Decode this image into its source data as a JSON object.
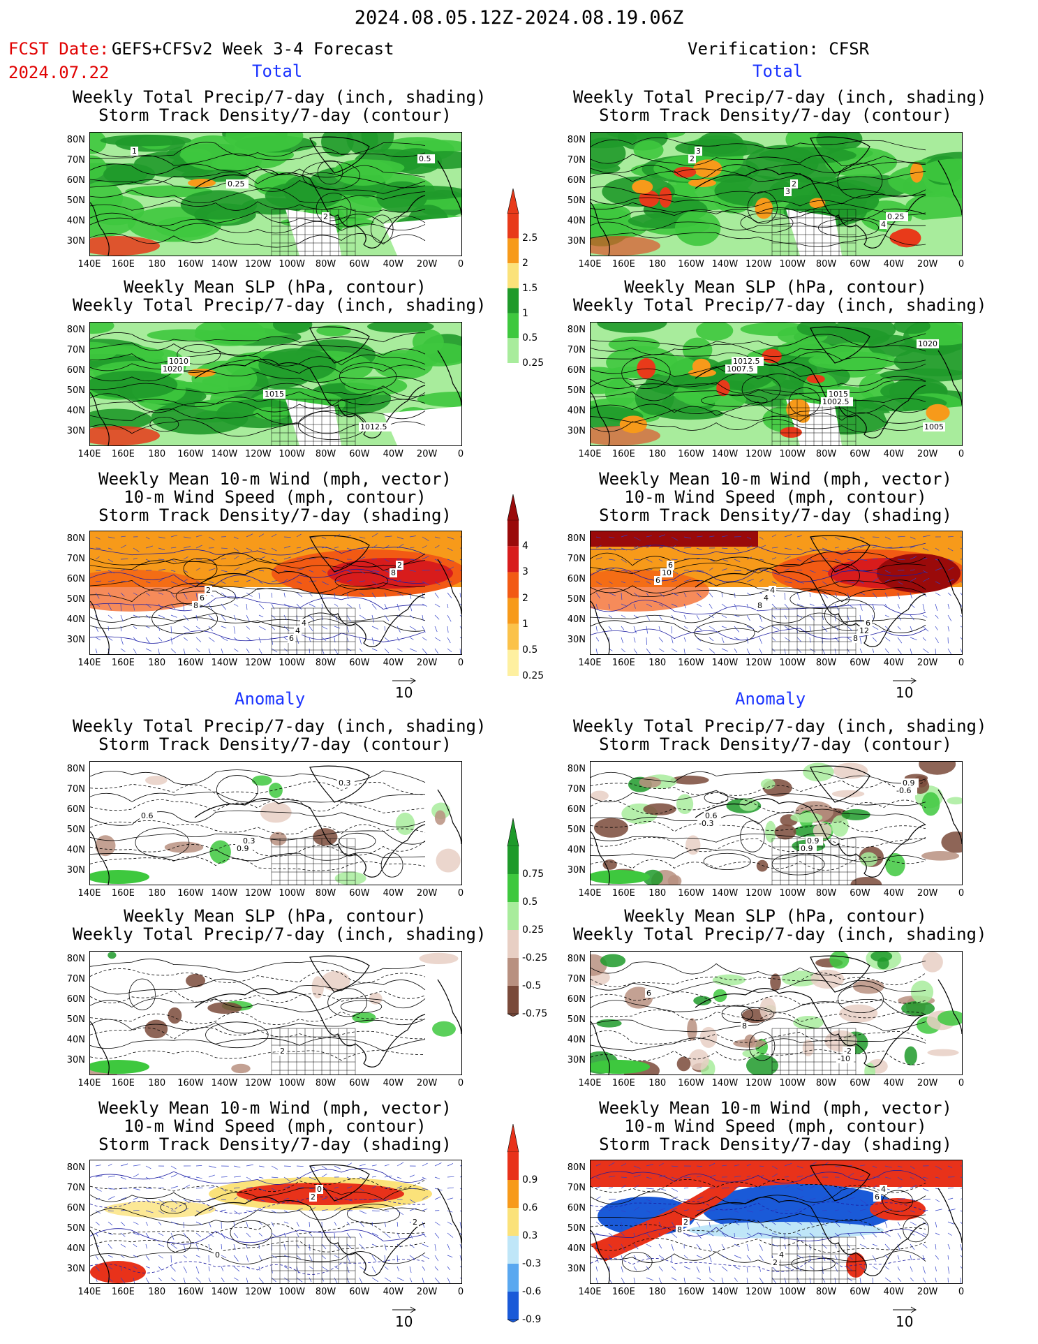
{
  "title": "2024.08.05.12Z-2024.08.19.06Z",
  "fcst_label": "FCST Date:",
  "fcst_model": "GEFS+CFSv2 Week 3-4 Forecast",
  "fcst_date": "2024.07.22",
  "verification": "Verification: CFSR",
  "section_total": "Total",
  "section_anomaly": "Anomaly",
  "panel_titles": {
    "precip_storm": [
      "Weekly Total Precip/7-day (inch, shading)",
      "Storm Track Density/7-day (contour)"
    ],
    "slp_precip": [
      "Weekly Mean SLP (hPa, contour)",
      "Weekly Total Precip/7-day (inch, shading)"
    ],
    "wind_storm": [
      "Weekly Mean 10-m Wind (mph, vector)",
      "10-m Wind Speed (mph, contour)",
      "Storm Track Density/7-day (shading)"
    ]
  },
  "lat_labels": [
    "80N",
    "70N",
    "60N",
    "50N",
    "40N",
    "30N"
  ],
  "lon_labels": [
    "140E",
    "160E",
    "180",
    "160W",
    "140W",
    "120W",
    "100W",
    "80W",
    "60W",
    "40W",
    "20W",
    "0"
  ],
  "vector_ref": "10",
  "colorbars": {
    "precip_total": {
      "labels": [
        "2.5",
        "2",
        "1.5",
        "1",
        "0.5",
        "0.25"
      ],
      "colors": [
        "#e83a1a",
        "#f79a1a",
        "#fbe27a",
        "#1f9a2a",
        "#3ec83e",
        "#a8ec9c"
      ]
    },
    "storm_total": {
      "labels": [
        "4",
        "3",
        "2",
        "1",
        "0.5",
        "0.25"
      ],
      "colors": [
        "#9a0a0a",
        "#d81c1c",
        "#f25a14",
        "#f79a1a",
        "#fbc24a",
        "#fef0a0"
      ]
    },
    "precip_anom": {
      "labels": [
        "0.75",
        "0.5",
        "0.25",
        "-0.25",
        "-0.5",
        "-0.75"
      ],
      "colors": [
        "#1e9a2a",
        "#3ec83e",
        "#a8ec9c",
        "#e8cfc4",
        "#b89080",
        "#7a4a3a"
      ]
    },
    "storm_anom": {
      "labels": [
        "0.9",
        "0.6",
        "0.3",
        "-0.3",
        "-0.6",
        "-0.9"
      ],
      "colors": [
        "#e8321a",
        "#f79a1a",
        "#fbe27a",
        "#bfe6f8",
        "#5aa8f0",
        "#1a5ad8"
      ]
    }
  },
  "contour_labels": {
    "fc_precip_storm": [
      "1",
      "0.25",
      "2",
      "0.5"
    ],
    "obs_precip_storm": [
      "3",
      "2",
      "0.25",
      "2",
      "3",
      "4"
    ],
    "fc_slp": [
      "1010",
      "1015",
      "1012.5",
      "1020"
    ],
    "obs_slp": [
      "1012.5",
      "1015",
      "1005",
      "1007.5",
      "1002.5",
      "1020"
    ],
    "fc_wind": [
      "2",
      "4",
      "2",
      "6",
      "4",
      "8",
      "8",
      "6"
    ],
    "obs_wind": [
      "4",
      "6",
      "6",
      "4",
      "12",
      "10",
      "8",
      "8",
      "6"
    ],
    "fc_anom_precip": [
      "0.3",
      "0.3",
      "0.6",
      "0.9"
    ],
    "obs_anom_precip": [
      "0.9",
      "0.9",
      "0.6",
      "0.9",
      "-0.6",
      "-0.3"
    ],
    "fc_anom_slp": [
      "2"
    ],
    "obs_anom_slp": [
      "-2",
      "6",
      "8",
      "-10"
    ],
    "fc_anom_wind": [
      "0",
      "2",
      "0",
      "2"
    ],
    "obs_anom_wind": [
      "4",
      "2",
      "4",
      "6",
      "8",
      "2"
    ]
  }
}
